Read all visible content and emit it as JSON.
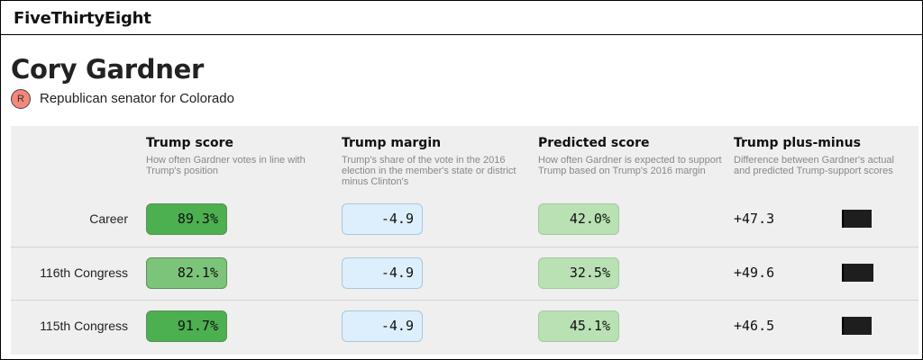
{
  "site": {
    "logo": "FiveThirtyEight"
  },
  "member": {
    "name": "Cory Gardner",
    "party_letter": "R",
    "description": "Republican senator for Colorado",
    "party_color": "#f4877a"
  },
  "columns": [
    {
      "title": "Trump score",
      "desc": "How often Gardner votes in line with Trump's position"
    },
    {
      "title": "Trump margin",
      "desc": "Trump's share of the vote in the 2016 election in the member's state or district minus Clinton's"
    },
    {
      "title": "Predicted score",
      "desc": "How often Gardner is expected to support Trump based on Trump's 2016 margin"
    },
    {
      "title": "Trump plus-minus",
      "desc": "Difference between Gardner's actual and predicted Trump-support scores"
    }
  ],
  "rows": [
    {
      "label": "Career",
      "score": "89.3%",
      "score_value": 89.3,
      "margin": "-4.9",
      "predicted": "42.0%",
      "plus_minus": "+47.3",
      "plus_minus_value": 47.3
    },
    {
      "label": "116th Congress",
      "score": "82.1%",
      "score_value": 82.1,
      "margin": "-4.9",
      "predicted": "32.5%",
      "plus_minus": "+49.6",
      "plus_minus_value": 49.6
    },
    {
      "label": "115th Congress",
      "score": "91.7%",
      "score_value": 91.7,
      "margin": "-4.9",
      "predicted": "45.1%",
      "plus_minus": "+46.5",
      "plus_minus_value": 46.5
    }
  ],
  "colors": {
    "score_high": "#4caf50",
    "score_low": "#7cc47a",
    "margin_bg": "#ddeffc",
    "predicted_bg": "#b9e1b4",
    "bar": "#1e1e1e"
  }
}
